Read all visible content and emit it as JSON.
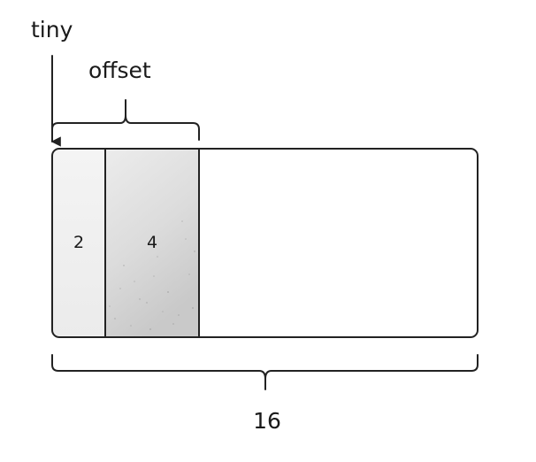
{
  "labels": {
    "pointer": "tiny",
    "offset": "offset",
    "total": "16"
  },
  "cells": [
    {
      "value": "2"
    },
    {
      "value": "4"
    },
    {
      "value": ""
    }
  ],
  "colors": {
    "stroke": "#222222",
    "cell_first": "#efefef",
    "cell_offset": "#d9d9d9",
    "cell_rest": "#ffffff"
  }
}
